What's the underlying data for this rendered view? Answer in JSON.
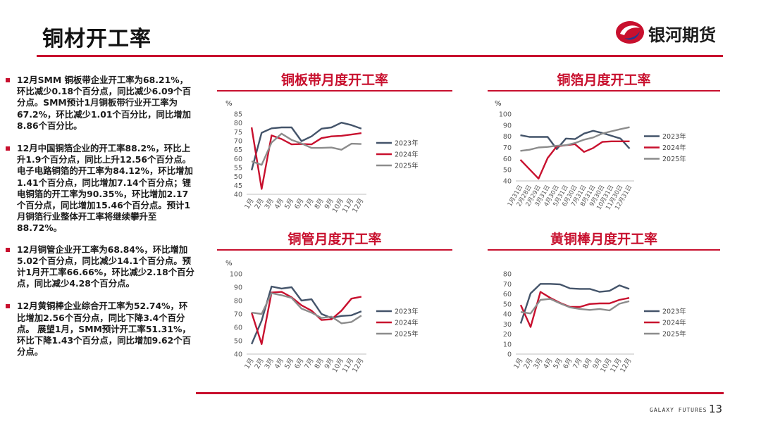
{
  "page": {
    "title": "铜材开工率",
    "logo_text": "银河期货",
    "footer_text": "GALAXY FUTURES",
    "page_number": "13",
    "brand_color": "#c8102e"
  },
  "bullets": [
    "12月SMM 铜板带企业开工率为68.21%，环比减少0.18个百分点，同比减少6.09个百分点。SMM预计1月铜板带行业开工率为67.2%，环比减少1.01个百分比，同比增加8.86个百分比。",
    "12月中国铜箔企业的开工率88.2%，环比上升1.9个百分点，同比上升12.56个百分点。电子电路铜箔的开工率为84.12%，环比增加1.41个百分点，同比增加7.14个百分点；锂电铜箔的开工率为90.35%，环比增加2.17个百分点，同比增加15.46个百分点。预计1月铜箔行业整体开工率将继续攀升至88.72%。",
    "12月铜管企业开工率为68.84%，环比增加5.02个百分点，同比减少14.1个百分点。预计1月开工率66.66%，环比减少2.18个百分点，同比减少4.28个百分点。",
    "12月黄铜棒企业综合开工率为52.74%，环比增加2.56个百分点，同比下降3.4个百分点。 展望1月，SMM预计开工率51.31%，环比下降1.43个百分点，同比增加9.62个百分点。"
  ],
  "chart_data": [
    {
      "type": "line",
      "title": "铜板带月度开工率",
      "ylabel": "%",
      "ylim": [
        40,
        85
      ],
      "yticks": [
        40,
        45,
        50,
        55,
        60,
        65,
        70,
        75,
        80,
        85
      ],
      "categories": [
        "1月",
        "2月",
        "3月",
        "4月",
        "5月",
        "6月",
        "7月",
        "8月",
        "9月",
        "10月",
        "11月",
        "12月"
      ],
      "legend_position": "right",
      "series": [
        {
          "name": "2023年",
          "color": "#44546a",
          "values": [
            53.5,
            74.5,
            77,
            77.5,
            77.5,
            69.8,
            72.5,
            76.8,
            77.5,
            80.2,
            78.8,
            76.8
          ]
        },
        {
          "name": "2024年",
          "color": "#c8102e",
          "values": [
            77.5,
            43,
            73,
            71,
            68,
            68.2,
            68,
            71.5,
            72.5,
            72.8,
            73.5,
            74.3
          ]
        },
        {
          "name": "2025年",
          "color": "#8c8c8c",
          "values": [
            58.5,
            56.5,
            69,
            74,
            70.5,
            68.5,
            66,
            66,
            66.2,
            65,
            68.4,
            68.2
          ]
        }
      ]
    },
    {
      "type": "line",
      "title": "铜箔月度开工率",
      "ylabel": "%",
      "ylim": [
        40,
        100
      ],
      "yticks": [
        40,
        50,
        60,
        70,
        80,
        90,
        100
      ],
      "categories": [
        "1月31日",
        "2月28日",
        "2月29日",
        "3月31日",
        "4月30日",
        "5月31日",
        "6月30日",
        "7月31日",
        "8月31日",
        "9月30日",
        "10月31日",
        "11月30日",
        "12月31日"
      ],
      "legend_position": "right",
      "series": [
        {
          "name": "2023年",
          "color": "#44546a",
          "values": [
            81,
            79.5,
            79.5,
            79.5,
            68.5,
            78,
            77.5,
            82.5,
            85,
            83,
            80.5,
            78,
            69
          ]
        },
        {
          "name": "2024年",
          "color": "#c8102e",
          "values": [
            59,
            null,
            42,
            60.5,
            71,
            72,
            73,
            66,
            69.5,
            75,
            75.5,
            75.5,
            75.5
          ]
        },
        {
          "name": "2025年",
          "color": "#8c8c8c",
          "values": [
            67,
            68,
            70,
            70.5,
            71.5,
            72,
            74,
            77,
            79,
            82.5,
            84.5,
            86.5,
            88.2
          ]
        }
      ]
    },
    {
      "type": "line",
      "title": "铜管月度开工率",
      "ylabel": "%",
      "ylim": [
        40,
        100
      ],
      "yticks": [
        40,
        50,
        60,
        70,
        80,
        90,
        100
      ],
      "categories": [
        "1月",
        "2月",
        "3月",
        "4月",
        "5月",
        "6月",
        "7月",
        "8月",
        "9月",
        "10月",
        "11月",
        "12月"
      ],
      "legend_position": "right",
      "series": [
        {
          "name": "2023年",
          "color": "#44546a",
          "values": [
            47.5,
            65,
            90.5,
            89,
            90,
            80,
            81,
            70,
            67,
            68.5,
            69,
            72
          ]
        },
        {
          "name": "2024年",
          "color": "#c8102e",
          "values": [
            71,
            47.5,
            86,
            86.5,
            82.5,
            76.5,
            72.5,
            65.5,
            66,
            72.5,
            81.5,
            82.9
          ]
        },
        {
          "name": "2025年",
          "color": "#8c8c8c",
          "values": [
            71,
            70,
            85.5,
            84,
            82,
            74,
            71,
            67,
            68,
            63,
            64,
            68.8
          ]
        }
      ]
    },
    {
      "type": "line",
      "title": "黄铜棒月度开工率",
      "ylabel": "",
      "ylim": [
        0,
        80
      ],
      "yticks": [
        0,
        10,
        20,
        30,
        40,
        50,
        60,
        70,
        80
      ],
      "categories": [
        "1月",
        "2月",
        "3月",
        "4月",
        "5月",
        "6月",
        "7月",
        "8月",
        "9月",
        "10月",
        "11月",
        "12月"
      ],
      "legend_position": "right",
      "series": [
        {
          "name": "2023年",
          "color": "#44546a",
          "values": [
            30.5,
            60.5,
            70,
            70,
            69.5,
            65.5,
            65,
            65,
            62,
            63,
            68.5,
            65
          ]
        },
        {
          "name": "2024年",
          "color": "#c8102e",
          "values": [
            49,
            27,
            62,
            56,
            51,
            47,
            47,
            50,
            50.5,
            50.5,
            54,
            56
          ]
        },
        {
          "name": "2025年",
          "color": "#8c8c8c",
          "values": [
            42,
            40.5,
            54,
            55,
            50.5,
            46.5,
            45,
            44,
            45,
            43.5,
            50.2,
            52.7
          ]
        }
      ]
    }
  ]
}
